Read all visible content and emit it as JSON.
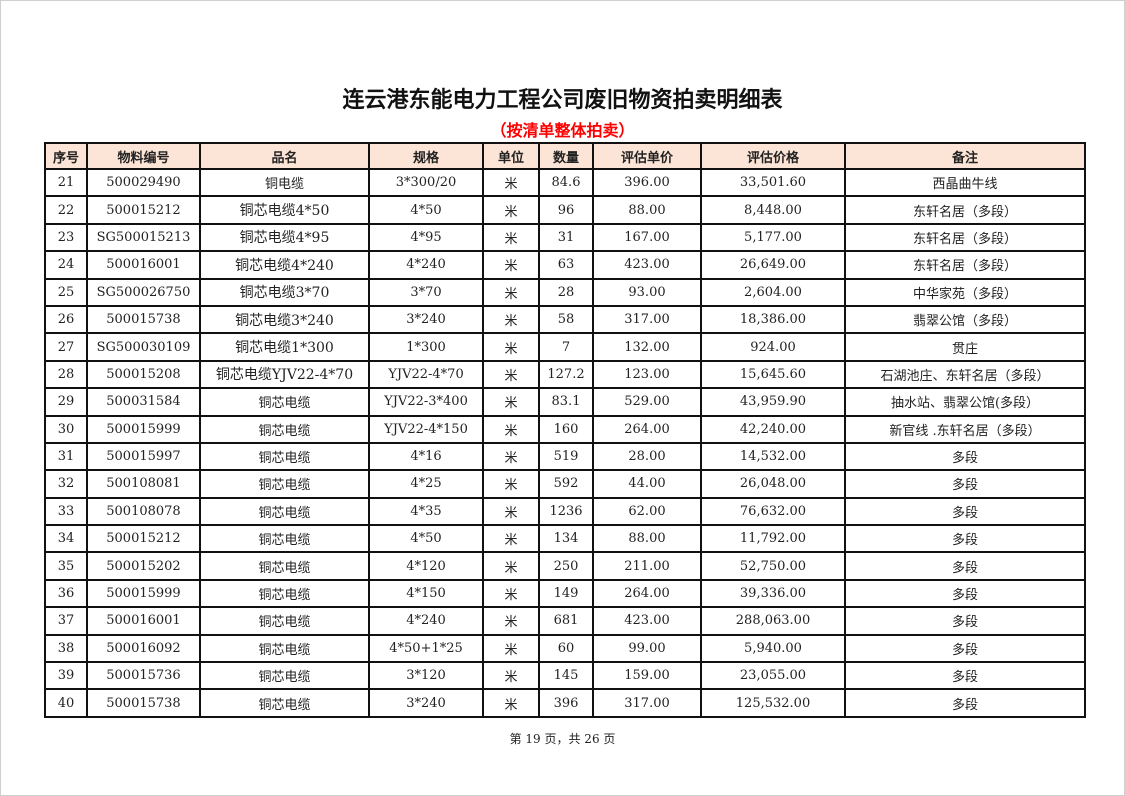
{
  "title": "连云港东能电力工程公司废旧物资拍卖明细表",
  "subtitle": "（按清单整体拍卖）",
  "columns": [
    "序号",
    "物料编号",
    "品名",
    "规格",
    "单位",
    "数量",
    "评估单价",
    "评估价格",
    "备注"
  ],
  "rows": [
    [
      "21",
      "500029490",
      "铜电缆",
      "3*300/20",
      "米",
      "84.6",
      "396.00",
      "33,501.60",
      "西晶曲牛线"
    ],
    [
      "22",
      "500015212",
      "铜芯电缆4*50",
      "4*50",
      "米",
      "96",
      "88.00",
      "8,448.00",
      "东轩名居（多段）"
    ],
    [
      "23",
      "SG500015213",
      "铜芯电缆4*95",
      "4*95",
      "米",
      "31",
      "167.00",
      "5,177.00",
      "东轩名居（多段）"
    ],
    [
      "24",
      "500016001",
      "铜芯电缆4*240",
      "4*240",
      "米",
      "63",
      "423.00",
      "26,649.00",
      "东轩名居（多段）"
    ],
    [
      "25",
      "SG500026750",
      "铜芯电缆3*70",
      "3*70",
      "米",
      "28",
      "93.00",
      "2,604.00",
      "中华家苑（多段）"
    ],
    [
      "26",
      "500015738",
      "铜芯电缆3*240",
      "3*240",
      "米",
      "58",
      "317.00",
      "18,386.00",
      "翡翠公馆（多段）"
    ],
    [
      "27",
      "SG500030109",
      "铜芯电缆1*300",
      "1*300",
      "米",
      "7",
      "132.00",
      "924.00",
      "贯庄"
    ],
    [
      "28",
      "500015208",
      "铜芯电缆YJV22-4*70",
      "YJV22-4*70",
      "米",
      "127.2",
      "123.00",
      "15,645.60",
      "石湖池庄、东轩名居（多段）"
    ],
    [
      "29",
      "500031584",
      "铜芯电缆",
      "YJV22-3*400",
      "米",
      "83.1",
      "529.00",
      "43,959.90",
      "抽水站、翡翠公馆(多段）"
    ],
    [
      "30",
      "500015999",
      "铜芯电缆",
      "YJV22-4*150",
      "米",
      "160",
      "264.00",
      "42,240.00",
      "新官线 .东轩名居（多段）"
    ],
    [
      "31",
      "500015997",
      "铜芯电缆",
      "4*16",
      "米",
      "519",
      "28.00",
      "14,532.00",
      "多段"
    ],
    [
      "32",
      "500108081",
      "铜芯电缆",
      "4*25",
      "米",
      "592",
      "44.00",
      "26,048.00",
      "多段"
    ],
    [
      "33",
      "500108078",
      "铜芯电缆",
      "4*35",
      "米",
      "1236",
      "62.00",
      "76,632.00",
      "多段"
    ],
    [
      "34",
      "500015212",
      "铜芯电缆",
      "4*50",
      "米",
      "134",
      "88.00",
      "11,792.00",
      "多段"
    ],
    [
      "35",
      "500015202",
      "铜芯电缆",
      "4*120",
      "米",
      "250",
      "211.00",
      "52,750.00",
      "多段"
    ],
    [
      "36",
      "500015999",
      "铜芯电缆",
      "4*150",
      "米",
      "149",
      "264.00",
      "39,336.00",
      "多段"
    ],
    [
      "37",
      "500016001",
      "铜芯电缆",
      "4*240",
      "米",
      "681",
      "423.00",
      "288,063.00",
      "多段"
    ],
    [
      "38",
      "500016092",
      "铜芯电缆",
      "4*50+1*25",
      "米",
      "60",
      "99.00",
      "5,940.00",
      "多段"
    ],
    [
      "39",
      "500015736",
      "铜芯电缆",
      "3*120",
      "米",
      "145",
      "159.00",
      "23,055.00",
      "多段"
    ],
    [
      "40",
      "500015738",
      "铜芯电缆",
      "3*240",
      "米",
      "396",
      "317.00",
      "125,532.00",
      "多段"
    ]
  ],
  "footer": "第 19 页，共 26 页",
  "colors": {
    "header_bg": "#fce4d6",
    "subtitle": "#ff0000"
  }
}
